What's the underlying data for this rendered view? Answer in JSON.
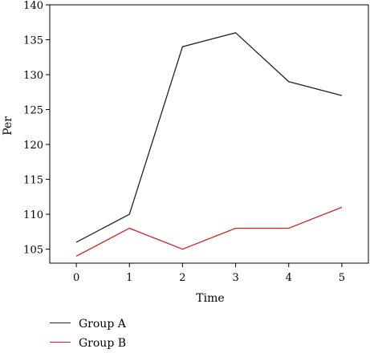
{
  "chart_data": {
    "type": "line",
    "x": [
      0,
      1,
      2,
      3,
      4,
      5
    ],
    "series": [
      {
        "name": "Group A",
        "color": "#222222",
        "values": [
          106,
          110,
          134,
          136,
          129,
          127
        ]
      },
      {
        "name": "Group B",
        "color": "#d62020",
        "values": [
          104,
          108,
          105,
          108,
          108,
          111
        ]
      }
    ],
    "xlabel": "Time",
    "ylabel": "Per",
    "xlim": [
      -0.5,
      5.5
    ],
    "ylim": [
      103,
      140
    ],
    "xticks": [
      0,
      1,
      2,
      3,
      4,
      5
    ],
    "yticks": [
      105,
      110,
      115,
      120,
      125,
      130,
      135,
      140
    ],
    "grid": false,
    "legend_position": "bottom-left"
  }
}
